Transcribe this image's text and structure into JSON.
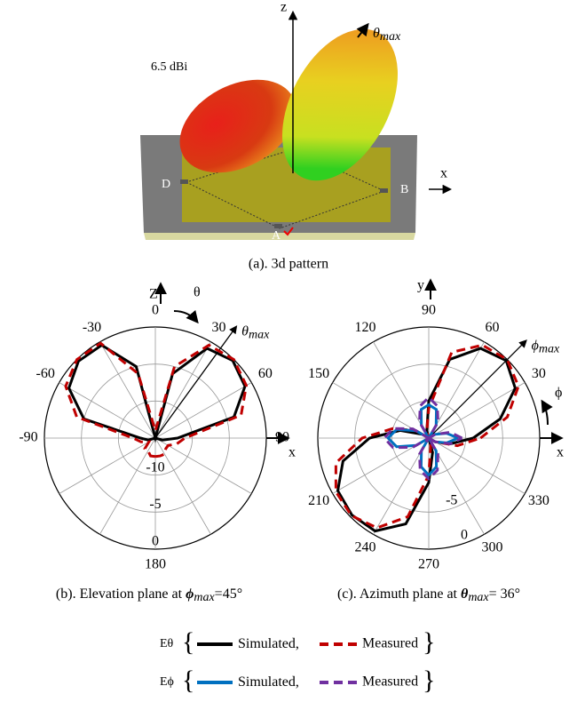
{
  "figure_a": {
    "z_label": "z",
    "x_label": "x",
    "max_symbol": "θ",
    "max_sub": "max",
    "gain": "6.5 dBi",
    "ports": [
      "D",
      "B",
      "A"
    ],
    "caption": "(a). 3d pattern"
  },
  "legend": {
    "open": "{",
    "close": "}",
    "separator": ","
  },
  "chart_data": [
    {
      "type": "polar",
      "theta_zero": "top",
      "theta_direction": "clockwise",
      "up_label": "Z",
      "right_label": "x",
      "rotation_label": "θ",
      "max_symbol": "θ",
      "max_sub": "max",
      "max_angle": 36,
      "caption": [
        "(b). Elevation plane at ",
        "ϕ",
        "max",
        "=45°"
      ],
      "rlim": [
        -15,
        0
      ],
      "rticks": [
        -10,
        -5,
        0
      ],
      "thetaticks": [
        0,
        30,
        60,
        90,
        {
          "value": 120,
          "label": null
        },
        {
          "value": 150,
          "label": null
        },
        180,
        {
          "value": -150,
          "label": null
        },
        {
          "value": -120,
          "label": null
        },
        -90,
        -60,
        -30
      ],
      "theta": [
        -180,
        -165,
        -150,
        -135,
        -120,
        -105,
        -90,
        -75,
        -60,
        -45,
        -30,
        -15,
        0,
        15,
        30,
        45,
        60,
        75,
        90,
        105,
        120,
        135,
        150,
        165,
        180
      ],
      "series": [
        {
          "name": "Simulated",
          "component": "Eθ",
          "color": "#000000",
          "dashed": false,
          "values": [
            -15,
            -15,
            -15,
            -15,
            -15,
            -14,
            -13,
            -5,
            -1.5,
            -0.3,
            -0.5,
            -5,
            -15,
            -6,
            -1,
            -0.2,
            -1,
            -4,
            -12,
            -14,
            -15,
            -15,
            -15,
            -15,
            -15
          ]
        },
        {
          "name": "Measured",
          "component": "Eθ",
          "color": "#c00000",
          "dashed": true,
          "values": [
            -12.5,
            -12.5,
            -13,
            -13,
            -14,
            -13,
            -12,
            -4,
            -1,
            0,
            -0.2,
            -6,
            -14,
            -5,
            -0.5,
            0,
            -0.8,
            -3,
            -11,
            -12,
            -13,
            -13,
            -12.5,
            -12.5,
            -12.5
          ]
        }
      ]
    },
    {
      "type": "polar",
      "theta_zero": "right",
      "theta_direction": "counterclockwise",
      "up_label": "y",
      "right_label": "x",
      "rotation_label": "ϕ",
      "max_symbol": "ϕ",
      "max_sub": "max",
      "max_angle": 45,
      "caption": [
        "(c). Azimuth plane at ",
        "θ",
        "max",
        "= 36°"
      ],
      "rlim": [
        -15,
        0
      ],
      "rticks": [
        {
          "value": -10,
          "label": null
        },
        -5,
        0
      ],
      "thetaticks": [
        {
          "value": 0,
          "label": null
        },
        30,
        60,
        90,
        120,
        150,
        {
          "value": 180,
          "label": null
        },
        210,
        240,
        270,
        300,
        330
      ],
      "theta": [
        0,
        15,
        30,
        45,
        60,
        75,
        90,
        105,
        120,
        135,
        150,
        165,
        180,
        195,
        210,
        225,
        240,
        255,
        270,
        285,
        300,
        315,
        330,
        345,
        360
      ],
      "series": [
        {
          "name": "Simulated",
          "component": "Eθ",
          "color": "#000000",
          "dashed": false,
          "values": [
            -9,
            -5,
            -1.5,
            -0.2,
            -1,
            -4,
            -10,
            -14,
            -15,
            -15,
            -14,
            -11,
            -7,
            -3,
            -0.8,
            -0.3,
            -0.5,
            -3,
            -9,
            -13,
            -15,
            -15,
            -14,
            -12,
            -9
          ]
        },
        {
          "name": "Measured",
          "component": "Eθ",
          "color": "#c00000",
          "dashed": true,
          "values": [
            -8,
            -4,
            -1,
            0,
            -0.5,
            -3,
            -11,
            -14,
            -15,
            -15,
            -13,
            -10,
            -6,
            -2,
            -0.5,
            -0.2,
            -1,
            -4,
            -10,
            -14,
            -15,
            -15,
            -14,
            -11,
            -8
          ]
        },
        {
          "name": "Simulated",
          "component": "Eϕ",
          "color": "#0070c0",
          "dashed": false,
          "values": [
            -11,
            -12.5,
            -14,
            -15,
            -13,
            -11,
            -10.5,
            -11,
            -13,
            -15,
            -13,
            -10.5,
            -9.5,
            -10.5,
            -13,
            -15,
            -13,
            -11,
            -10,
            -11,
            -13,
            -15,
            -14,
            -12.5,
            -11
          ]
        },
        {
          "name": "Measured",
          "component": "Eϕ",
          "color": "#7030a0",
          "dashed": true,
          "values": [
            -10.5,
            -12,
            -14,
            -15,
            -12.5,
            -10.5,
            -9.5,
            -10.5,
            -12.5,
            -15,
            -12.5,
            -10,
            -9,
            -10,
            -12.5,
            -15,
            -12.5,
            -10.5,
            -9.5,
            -10.5,
            -12.5,
            -15,
            -14,
            -12,
            -10.5
          ]
        }
      ]
    }
  ]
}
